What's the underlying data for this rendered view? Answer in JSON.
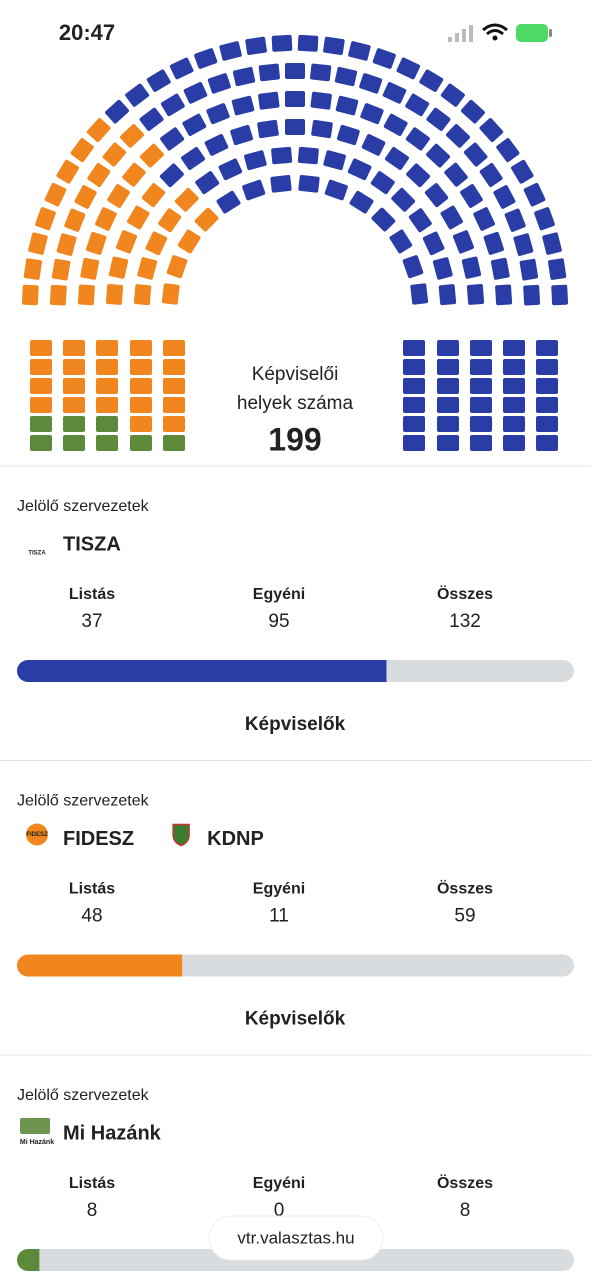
{
  "status_bar": {
    "time": "20:47"
  },
  "seat_chart": {
    "caption_lines": [
      "Képviselői",
      "helyek száma"
    ],
    "total_seats": 199
  },
  "parties": [
    {
      "label": "Jelölő szervezetek",
      "organizations": [
        {
          "name": "TISZA",
          "logo_text": "TISZA"
        }
      ],
      "columns": [
        {
          "label": "Listás",
          "value": 37
        },
        {
          "label": "Egyéni",
          "value": 95
        },
        {
          "label": "Összes",
          "value": 132
        }
      ],
      "color": "#2a3da6",
      "link": "Képviselők"
    },
    {
      "label": "Jelölő szervezetek",
      "organizations": [
        {
          "name": "FIDESZ",
          "logo_text": "FIDESZ"
        },
        {
          "name": "KDNP"
        }
      ],
      "columns": [
        {
          "label": "Listás",
          "value": 48
        },
        {
          "label": "Egyéni",
          "value": 11
        },
        {
          "label": "Összes",
          "value": 59
        }
      ],
      "color": "#f0861d",
      "link": "Képviselők"
    },
    {
      "label": "Jelölő szervezetek",
      "organizations": [
        {
          "name": "Mi Hazánk",
          "logo_text": "Mi Hazánk"
        }
      ],
      "columns": [
        {
          "label": "Listás",
          "value": 8
        },
        {
          "label": "Egyéni",
          "value": 0
        },
        {
          "label": "Összes",
          "value": 8
        }
      ],
      "color": "#5d8a3a"
    }
  ],
  "url": "vtr.valasztas.hu"
}
